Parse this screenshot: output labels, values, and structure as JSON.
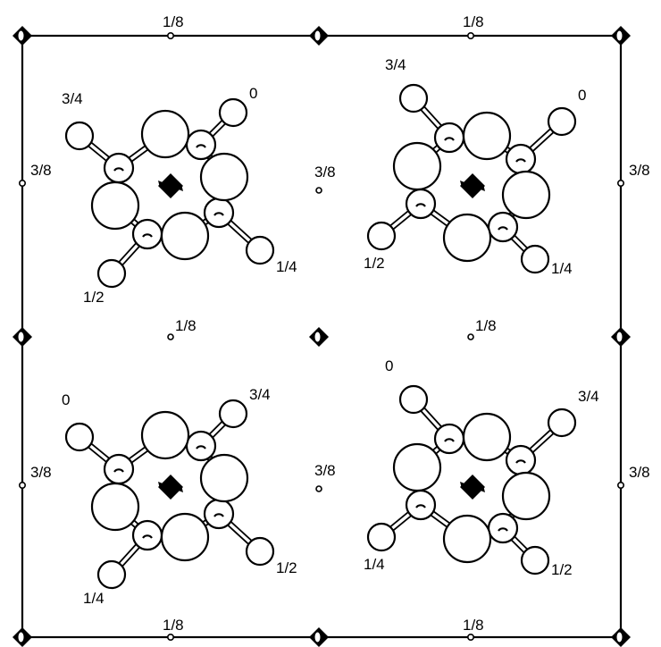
{
  "figure": {
    "cell_edge_labels": {
      "top_left": "1/8",
      "top_right": "1/8",
      "bottom_left": "1/8",
      "bottom_right": "1/8",
      "left_top": "3/8",
      "left_bottom": "3/8",
      "right_top": "3/8",
      "right_bottom": "3/8"
    },
    "interior_labels": {
      "center_upper": "3/8",
      "center_lower": "3/8",
      "mid_left": "1/8",
      "mid_right": "1/8"
    },
    "molecules": [
      {
        "position": "top-left",
        "labels": [
          "3/4",
          "0",
          "1/4",
          "1/2"
        ]
      },
      {
        "position": "top-right",
        "labels": [
          "1/2",
          "1/4",
          "0",
          "3/4"
        ]
      },
      {
        "position": "bottom-left",
        "labels": [
          "0",
          "3/4",
          "1/2",
          "1/4"
        ]
      },
      {
        "position": "bottom-right",
        "labels": [
          "1/4",
          "1/2",
          "3/4",
          "0"
        ]
      }
    ]
  }
}
